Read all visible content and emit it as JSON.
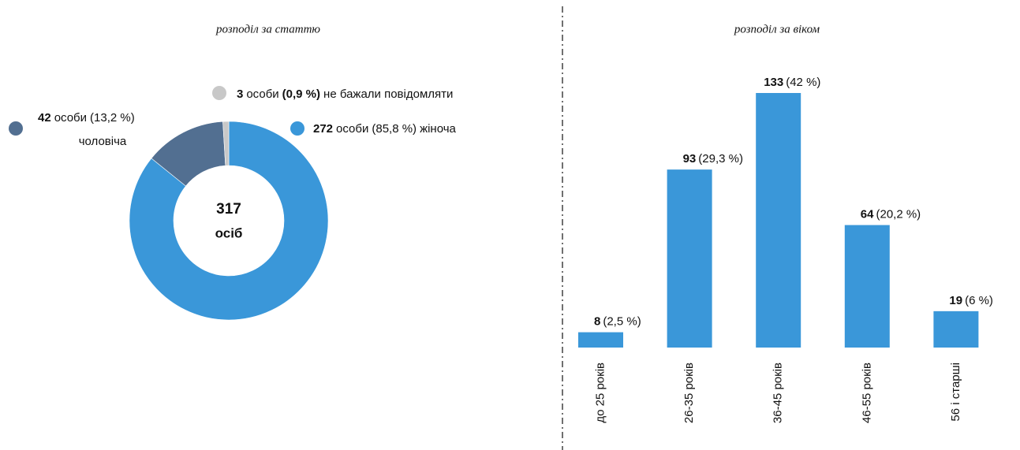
{
  "chart_data": [
    {
      "type": "donut",
      "title": "розподіл за статтю",
      "categories": [
        "жіноча",
        "чоловіча",
        "не бажали повідомляти"
      ],
      "values": [
        272,
        42,
        3
      ],
      "unit_labels": [
        "особи",
        "особи",
        "особи"
      ],
      "percent_labels": [
        "(85,8 %)",
        "(13,2 %)",
        "(0,9 %)"
      ],
      "colors": [
        "#3a97d9",
        "#526f91",
        "#c8c8c8"
      ],
      "total": 317,
      "total_label": "осіб"
    },
    {
      "type": "bar",
      "title": "розподіл за віком",
      "categories": [
        "до 25 років",
        "26-35 років",
        "36-45 років",
        "46-55 років",
        "56 і старші"
      ],
      "values": [
        8,
        93,
        133,
        64,
        19
      ],
      "percent_labels": [
        "(2,5 %)",
        "(29,3 %)",
        "(42 %)",
        "(20,2 %)",
        "(6 %)"
      ],
      "color": "#3a97d9"
    }
  ]
}
